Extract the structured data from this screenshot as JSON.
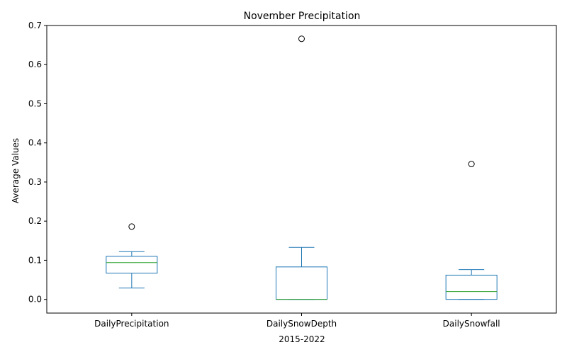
{
  "chart_data": {
    "type": "box",
    "title": "November Precipitation",
    "xlabel": "2015-2022",
    "ylabel": "Average Values",
    "ylim": [
      -0.035,
      0.7
    ],
    "yticks": [
      0.0,
      0.1,
      0.2,
      0.3,
      0.4,
      0.5,
      0.6,
      0.7
    ],
    "ytick_labels": [
      "0.0",
      "0.1",
      "0.2",
      "0.3",
      "0.4",
      "0.5",
      "0.6",
      "0.7"
    ],
    "grid": false,
    "categories": [
      "DailyPrecipitation",
      "DailySnowDepth",
      "DailySnowfall"
    ],
    "boxes": [
      {
        "whisker_low": 0.029,
        "q1": 0.067,
        "median": 0.094,
        "q3": 0.11,
        "whisker_high": 0.122,
        "outliers": [
          0.186
        ]
      },
      {
        "whisker_low": 0.0,
        "q1": 0.0,
        "median": 0.0,
        "q3": 0.083,
        "whisker_high": 0.133,
        "outliers": [
          0.666
        ]
      },
      {
        "whisker_low": 0.0,
        "q1": 0.0,
        "median": 0.02,
        "q3": 0.062,
        "whisker_high": 0.076,
        "outliers": [
          0.346
        ]
      }
    ],
    "colors": {
      "box": "#1f77b4",
      "median": "#2ca02c",
      "outlier": "#000000"
    }
  }
}
